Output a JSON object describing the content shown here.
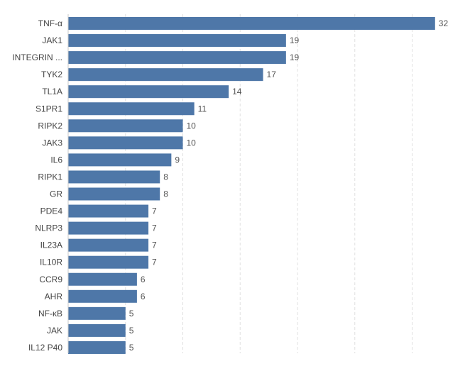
{
  "chart_data": {
    "type": "bar",
    "orientation": "horizontal",
    "categories": [
      "TNF-α",
      "JAK1",
      "INTEGRIN ...",
      "TYK2",
      "TL1A",
      "S1PR1",
      "RIPK2",
      "JAK3",
      "IL6",
      "RIPK1",
      "GR",
      "PDE4",
      "NLRP3",
      "IL23A",
      "IL10R",
      "CCR9",
      "AHR",
      "NF-κB",
      "JAK",
      "IL12 P40"
    ],
    "values": [
      32,
      19,
      19,
      17,
      14,
      11,
      10,
      10,
      9,
      8,
      8,
      7,
      7,
      7,
      7,
      6,
      6,
      5,
      5,
      5
    ],
    "xlim": [
      0,
      35
    ],
    "grid_x": true,
    "data_labels": true,
    "title": "",
    "xlabel": "",
    "ylabel": "",
    "colors": {
      "bar": "#4e77a8",
      "grid": "#e0e0e0",
      "axis": "#c8c8c8"
    }
  }
}
